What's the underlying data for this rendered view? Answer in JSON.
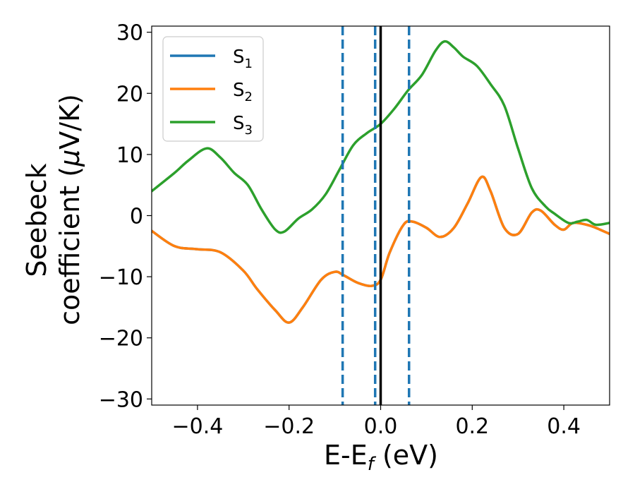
{
  "chart_data": {
    "type": "line",
    "xlabel": {
      "main": "E-E",
      "sub": "f",
      "unit": " (eV)"
    },
    "ylabel": {
      "line1": "Seebeck",
      "line2_text": "coefficient  (",
      "line2_mu": "μ",
      "line2_unit": "V/K)"
    },
    "xlim": [
      -0.5,
      0.5
    ],
    "ylim": [
      -31,
      31
    ],
    "xticks": [
      -0.4,
      -0.2,
      0.0,
      0.2,
      0.4
    ],
    "xtick_labels": [
      "−0.4",
      "−0.2",
      "0.0",
      "0.2",
      "0.4"
    ],
    "yticks": [
      -30,
      -20,
      -10,
      0,
      10,
      20,
      30
    ],
    "ytick_labels": [
      "−30",
      "−20",
      "−10",
      "0",
      "10",
      "20",
      "30"
    ],
    "grid": false,
    "legend_position": "top-left",
    "vlines": [
      {
        "x": -0.083,
        "style": "dashed",
        "color": "#1f77b4"
      },
      {
        "x": -0.012,
        "style": "dashed",
        "color": "#1f77b4"
      },
      {
        "x": 0.062,
        "style": "dashed",
        "color": "#1f77b4"
      },
      {
        "x": 0.0,
        "style": "solid",
        "color": "#000000"
      }
    ],
    "series": [
      {
        "name": "S",
        "sub": "1",
        "color": "#1f77b4",
        "x": [
          -0.5,
          -0.45,
          -0.4,
          -0.35,
          -0.3,
          -0.27,
          -0.23,
          -0.2,
          -0.17,
          -0.13,
          -0.1,
          -0.08,
          -0.05,
          -0.02,
          0.0,
          0.02,
          0.05,
          0.07,
          0.1,
          0.13,
          0.16,
          0.19,
          0.22,
          0.24,
          0.27,
          0.3,
          0.33,
          0.35,
          0.38,
          0.4,
          0.42,
          0.45,
          0.47,
          0.5
        ],
        "y": [
          -2.5,
          -5,
          -5.5,
          -6,
          -9,
          -12,
          -15.5,
          -17.5,
          -15,
          -10.5,
          -9.2,
          -9.8,
          -11,
          -11.5,
          -10.5,
          -6,
          -1.5,
          -1,
          -2,
          -3.5,
          -2,
          2,
          6.3,
          4,
          -2,
          -3,
          0.5,
          0.8,
          -1.5,
          -2.3,
          -1.2,
          -1.5,
          -2,
          -3
        ]
      },
      {
        "name": "S",
        "sub": "2",
        "color": "#ff7f0e",
        "x": [
          -0.5,
          -0.45,
          -0.4,
          -0.35,
          -0.3,
          -0.27,
          -0.23,
          -0.2,
          -0.17,
          -0.13,
          -0.1,
          -0.08,
          -0.05,
          -0.02,
          0.0,
          0.02,
          0.05,
          0.07,
          0.1,
          0.13,
          0.16,
          0.19,
          0.22,
          0.24,
          0.27,
          0.3,
          0.33,
          0.35,
          0.38,
          0.4,
          0.42,
          0.45,
          0.47,
          0.5
        ],
        "y": [
          -2.5,
          -5,
          -5.5,
          -6,
          -9,
          -12,
          -15.5,
          -17.5,
          -15,
          -10.5,
          -9.2,
          -9.8,
          -11,
          -11.5,
          -10.5,
          -6,
          -1.5,
          -1,
          -2,
          -3.5,
          -2,
          2,
          6.3,
          4,
          -2,
          -3,
          0.5,
          0.8,
          -1.5,
          -2.3,
          -1.2,
          -1.5,
          -2,
          -3
        ]
      },
      {
        "name": "S",
        "sub": "3",
        "color": "#2ca02c",
        "x": [
          -0.5,
          -0.45,
          -0.42,
          -0.38,
          -0.35,
          -0.32,
          -0.29,
          -0.26,
          -0.23,
          -0.21,
          -0.18,
          -0.15,
          -0.12,
          -0.09,
          -0.06,
          -0.03,
          0.0,
          0.03,
          0.06,
          0.09,
          0.12,
          0.14,
          0.16,
          0.18,
          0.21,
          0.24,
          0.27,
          0.3,
          0.33,
          0.36,
          0.38,
          0.41,
          0.43,
          0.45,
          0.47,
          0.5
        ],
        "y": [
          4,
          7,
          9,
          11,
          9.5,
          7,
          5,
          1,
          -2.3,
          -2.6,
          -0.5,
          1,
          3.5,
          7.5,
          11.5,
          13.5,
          15,
          17.5,
          20.5,
          23,
          27,
          28.5,
          27.5,
          26,
          24.5,
          21.5,
          18,
          11,
          4.5,
          1.5,
          0.3,
          -1.2,
          -1,
          -0.7,
          -1.5,
          -1.2
        ]
      }
    ]
  }
}
